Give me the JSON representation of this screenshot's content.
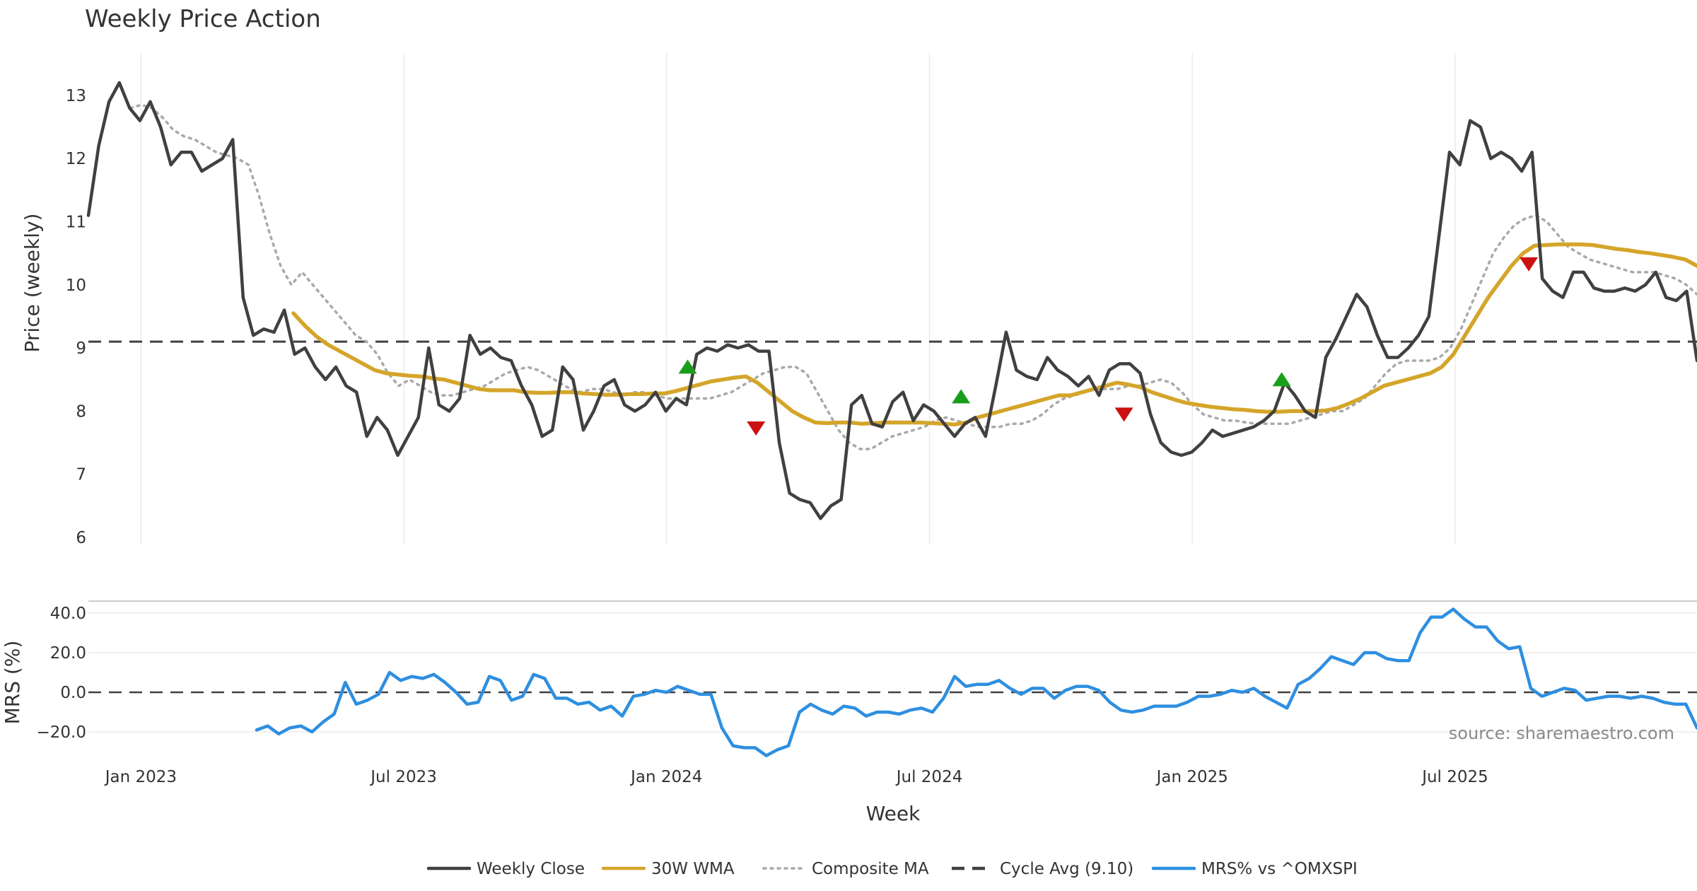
{
  "chart_data": [
    {
      "type": "line",
      "title": "Weekly Price Action",
      "ylabel": "Price (weekly)",
      "xlabel": "",
      "ylim": [
        6,
        13.6
      ],
      "yticks": [
        "6",
        "7",
        "8",
        "9",
        "10",
        "11",
        "12",
        "13"
      ],
      "ytick_values": [
        6,
        7,
        8,
        9,
        10,
        11,
        12,
        13
      ],
      "x_range": [
        2022.9,
        2025.96
      ],
      "x_gridlines": [
        2023.0,
        2023.5,
        2024.0,
        2024.5,
        2025.0,
        2025.5
      ],
      "cycle_avg": 9.1,
      "series": [
        {
          "name": "Weekly Close",
          "color": "#404040",
          "style": "solid",
          "x_start": 2022.9,
          "x_end": 2025.96,
          "values": [
            11.1,
            12.2,
            12.9,
            13.2,
            12.8,
            12.6,
            12.9,
            12.5,
            11.9,
            12.1,
            12.1,
            11.8,
            11.9,
            12.0,
            12.3,
            9.8,
            9.2,
            9.3,
            9.25,
            9.6,
            8.9,
            9.0,
            8.7,
            8.5,
            8.7,
            8.4,
            8.3,
            7.6,
            7.9,
            7.7,
            7.3,
            7.6,
            7.9,
            9.0,
            8.1,
            8.0,
            8.2,
            9.2,
            8.9,
            9.0,
            8.85,
            8.8,
            8.4,
            8.1,
            7.6,
            7.7,
            8.7,
            8.5,
            7.7,
            8.0,
            8.4,
            8.5,
            8.1,
            8.0,
            8.1,
            8.3,
            8.0,
            8.2,
            8.1,
            8.9,
            9.0,
            8.95,
            9.05,
            9.0,
            9.05,
            8.95,
            8.95,
            7.5,
            6.7,
            6.6,
            6.55,
            6.3,
            6.5,
            6.6,
            8.1,
            8.25,
            7.8,
            7.75,
            8.15,
            8.3,
            7.85,
            8.1,
            8.0,
            7.8,
            7.6,
            7.8,
            7.9,
            7.6,
            8.4,
            9.25,
            8.65,
            8.55,
            8.5,
            8.85,
            8.65,
            8.55,
            8.4,
            8.55,
            8.25,
            8.65,
            8.75,
            8.75,
            8.6,
            7.95,
            7.5,
            7.35,
            7.3,
            7.35,
            7.5,
            7.7,
            7.6,
            7.65,
            7.7,
            7.75,
            7.85,
            8.0,
            8.45,
            8.25,
            8.0,
            7.9,
            8.85,
            9.15,
            9.5,
            9.85,
            9.65,
            9.2,
            8.85,
            8.85,
            9.0,
            9.2,
            9.5,
            10.8,
            12.1,
            11.9,
            12.6,
            12.5,
            12.0,
            12.1,
            12.0,
            11.8,
            12.1,
            10.1,
            9.9,
            9.8,
            10.2,
            10.2,
            9.95,
            9.9,
            9.9,
            9.95,
            9.9,
            10.0,
            10.2,
            9.8,
            9.75,
            9.9,
            8.8
          ]
        },
        {
          "name": "30W WMA",
          "color": "#d4a52a",
          "style": "solid",
          "x_start": 2023.29,
          "x_end": 2025.96,
          "values": [
            9.55,
            9.35,
            9.18,
            9.05,
            8.95,
            8.85,
            8.75,
            8.65,
            8.6,
            8.58,
            8.56,
            8.55,
            8.52,
            8.5,
            8.45,
            8.4,
            8.35,
            8.33,
            8.33,
            8.33,
            8.3,
            8.29,
            8.29,
            8.3,
            8.3,
            8.28,
            8.27,
            8.26,
            8.26,
            8.27,
            8.27,
            8.28,
            8.28,
            8.32,
            8.37,
            8.42,
            8.47,
            8.5,
            8.53,
            8.55,
            8.45,
            8.3,
            8.15,
            8.0,
            7.9,
            7.82,
            7.81,
            7.82,
            7.82,
            7.8,
            7.81,
            7.82,
            7.82,
            7.82,
            7.82,
            7.81,
            7.8,
            7.79,
            7.82,
            7.9,
            7.95,
            8.0,
            8.05,
            8.1,
            8.15,
            8.2,
            8.25,
            8.25,
            8.3,
            8.35,
            8.4,
            8.45,
            8.42,
            8.38,
            8.3,
            8.24,
            8.18,
            8.13,
            8.1,
            8.07,
            8.05,
            8.03,
            8.02,
            8.0,
            7.99,
            7.99,
            8.0,
            8.0,
            8.0,
            8.01,
            8.05,
            8.12,
            8.2,
            8.3,
            8.4,
            8.45,
            8.5,
            8.55,
            8.6,
            8.7,
            8.9,
            9.2,
            9.5,
            9.8,
            10.05,
            10.3,
            10.5,
            10.62,
            10.63,
            10.64,
            10.64,
            10.64,
            10.63,
            10.6,
            10.57,
            10.55,
            10.52,
            10.5,
            10.47,
            10.44,
            10.4,
            10.3
          ]
        },
        {
          "name": "Composite MA",
          "color": "#a9a9a9",
          "style": "dotted",
          "x_start": 2022.98,
          "x_end": 2025.96,
          "values": [
            12.8,
            12.85,
            12.8,
            12.65,
            12.45,
            12.35,
            12.3,
            12.2,
            12.1,
            12.05,
            12.0,
            11.9,
            11.4,
            10.8,
            10.3,
            10.0,
            10.2,
            10.0,
            9.8,
            9.6,
            9.4,
            9.2,
            9.1,
            8.9,
            8.6,
            8.4,
            8.5,
            8.4,
            8.3,
            8.25,
            8.25,
            8.3,
            8.35,
            8.4,
            8.5,
            8.6,
            8.65,
            8.7,
            8.65,
            8.55,
            8.45,
            8.35,
            8.3,
            8.35,
            8.35,
            8.3,
            8.25,
            8.3,
            8.3,
            8.25,
            8.2,
            8.2,
            8.2,
            8.2,
            8.2,
            8.25,
            8.3,
            8.4,
            8.5,
            8.6,
            8.65,
            8.7,
            8.7,
            8.6,
            8.3,
            8.0,
            7.7,
            7.5,
            7.4,
            7.4,
            7.5,
            7.6,
            7.65,
            7.7,
            7.75,
            7.85,
            7.9,
            7.85,
            7.8,
            7.75,
            7.75,
            7.75,
            7.8,
            7.8,
            7.85,
            7.95,
            8.1,
            8.2,
            8.25,
            8.3,
            8.35,
            8.35,
            8.35,
            8.4,
            8.4,
            8.45,
            8.5,
            8.45,
            8.3,
            8.1,
            7.95,
            7.9,
            7.85,
            7.85,
            7.82,
            7.8,
            7.8,
            7.8,
            7.8,
            7.85,
            7.9,
            7.95,
            8.0,
            8.0,
            8.1,
            8.2,
            8.4,
            8.6,
            8.75,
            8.8,
            8.8,
            8.8,
            8.85,
            9.0,
            9.3,
            9.7,
            10.1,
            10.5,
            10.75,
            10.95,
            11.05,
            11.1,
            11.0,
            10.8,
            10.6,
            10.5,
            10.4,
            10.35,
            10.3,
            10.25,
            10.2,
            10.2,
            10.2,
            10.15,
            10.1,
            10.0,
            9.85
          ]
        },
        {
          "name": "Cycle Avg (9.10)",
          "color": "#404040",
          "style": "dashed",
          "value": 9.1
        }
      ],
      "signals": [
        {
          "type": "buy",
          "x": 2024.04,
          "y": 8.65,
          "color": "#1a9e1a"
        },
        {
          "type": "sell",
          "x": 2024.17,
          "y": 7.78,
          "color": "#cc1111"
        },
        {
          "type": "buy",
          "x": 2024.56,
          "y": 8.18,
          "color": "#1a9e1a"
        },
        {
          "type": "sell",
          "x": 2024.87,
          "y": 8.0,
          "color": "#cc1111"
        },
        {
          "type": "buy",
          "x": 2025.17,
          "y": 8.45,
          "color": "#1a9e1a"
        },
        {
          "type": "sell",
          "x": 2025.64,
          "y": 10.38,
          "color": "#cc1111"
        }
      ]
    },
    {
      "type": "line",
      "title": "",
      "ylabel": "MRS (%)",
      "xlabel": "Week",
      "ylim": [
        -28,
        48
      ],
      "yticks": [
        "−20.0",
        "0.0",
        "20.0",
        "40.0"
      ],
      "ytick_values": [
        -20,
        0,
        20,
        40
      ],
      "xticks": [
        "Jan 2023",
        "Jul 2023",
        "Jan 2024",
        "Jul 2024",
        "Jan 2025",
        "Jul 2025"
      ],
      "xtick_values": [
        2023.0,
        2023.5,
        2024.0,
        2024.5,
        2025.0,
        2025.5
      ],
      "x_range": [
        2022.9,
        2025.96
      ],
      "zero_line": 0,
      "series": [
        {
          "name": "MRS% vs ^OMXSPI",
          "color": "#2e8fe0",
          "style": "solid",
          "x_start": 2023.22,
          "x_end": 2025.96,
          "values": [
            -19,
            -17,
            -21,
            -18,
            -17,
            -20,
            -15,
            -11,
            5,
            -6,
            -4,
            -1,
            10,
            6,
            8,
            7,
            9,
            5,
            0,
            -6,
            -5,
            8,
            6,
            -4,
            -2,
            9,
            7,
            -3,
            -3,
            -6,
            -5,
            -9,
            -7,
            -12,
            -2,
            -1,
            1,
            0,
            3,
            1,
            -1,
            -1,
            -18,
            -27,
            -28,
            -28,
            -32,
            -29,
            -27,
            -10,
            -6,
            -9,
            -11,
            -7,
            -8,
            -12,
            -10,
            -10,
            -11,
            -9,
            -8,
            -10,
            -3,
            8,
            3,
            4,
            4,
            6,
            2,
            -1,
            2,
            2,
            -3,
            1,
            3,
            3,
            1,
            -5,
            -9,
            -10,
            -9,
            -7,
            -7,
            -7,
            -5,
            -2,
            -2,
            -1,
            1,
            0,
            2,
            -2,
            -5,
            -8,
            4,
            7,
            12,
            18,
            16,
            14,
            20,
            20,
            17,
            16,
            16,
            30,
            38,
            38,
            42,
            37,
            33,
            33,
            26,
            22,
            23,
            2,
            -2,
            0,
            2,
            1,
            -4,
            -3,
            -2,
            -2,
            -3,
            -2,
            -3,
            -5,
            -6,
            -6,
            -18
          ]
        }
      ],
      "source": "source: sharemaestro.com"
    }
  ],
  "legend": [
    {
      "label": "Weekly Close",
      "color": "#404040",
      "style": "solid"
    },
    {
      "label": "30W WMA",
      "color": "#d4a52a",
      "style": "solid"
    },
    {
      "label": "Composite MA",
      "color": "#a9a9a9",
      "style": "dotted"
    },
    {
      "label": "Cycle Avg (9.10)",
      "color": "#404040",
      "style": "dashed"
    },
    {
      "label": "MRS% vs ^OMXSPI",
      "color": "#2e8fe0",
      "style": "solid"
    }
  ]
}
